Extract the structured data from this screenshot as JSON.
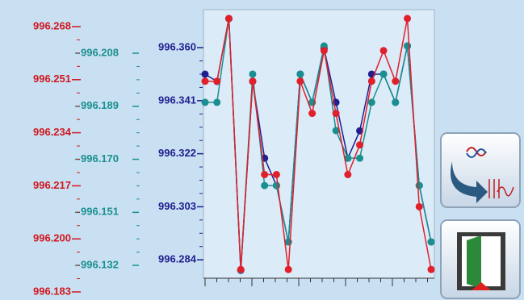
{
  "chart_data": {
    "type": "line",
    "ylim": [
      996.2774,
      996.3736
    ],
    "yticks": [
      {
        "value": 996.36,
        "label": "996.360"
      },
      996.341,
      996.322,
      996.303,
      996.284
    ],
    "y2lim": [
      996.1274,
      996.2236
    ],
    "y2ticks": [
      996.208,
      996.189,
      {
        "value": 996.17,
        "label": "996.170"
      },
      996.151,
      996.132
    ],
    "y3lim": [
      996.183,
      996.268
    ],
    "y3ticks": [
      996.268,
      996.251,
      996.234,
      996.217,
      {
        "value": 996.2,
        "label": "996.200"
      },
      996.183
    ],
    "series": [
      {
        "color": "#1f1f8f",
        "axis": "y",
        "values": [
          996.3505,
          996.3479,
          996.3704,
          996.2802,
          996.3479,
          996.3204,
          996.3106,
          996.2904,
          996.3505,
          996.3404,
          996.3597,
          996.3404,
          996.3204,
          996.3302,
          996.3505,
          996.3505,
          996.3404,
          996.3606,
          996.3106,
          996.2904
        ]
      },
      {
        "color": "#1a8f8f",
        "axis": "y2",
        "values": [
          996.1904,
          996.1904,
          996.2204,
          996.1303,
          996.2005,
          996.1606,
          996.1606,
          996.1404,
          996.2005,
          996.1904,
          996.2106,
          996.1803,
          996.1704,
          996.1704,
          996.1904,
          996.2005,
          996.1904,
          996.2106,
          996.1606,
          996.1404
        ]
      },
      {
        "color": "#e0202a",
        "axis": "y3",
        "values": [
          996.2505,
          996.2505,
          996.2706,
          996.1902,
          996.2505,
          996.2206,
          996.2206,
          996.1902,
          996.2505,
          996.2402,
          996.2603,
          996.2402,
          996.2206,
          996.2301,
          996.2505,
          996.2603,
          996.2505,
          996.2706,
          996.2103,
          996.1902
        ]
      }
    ]
  }
}
